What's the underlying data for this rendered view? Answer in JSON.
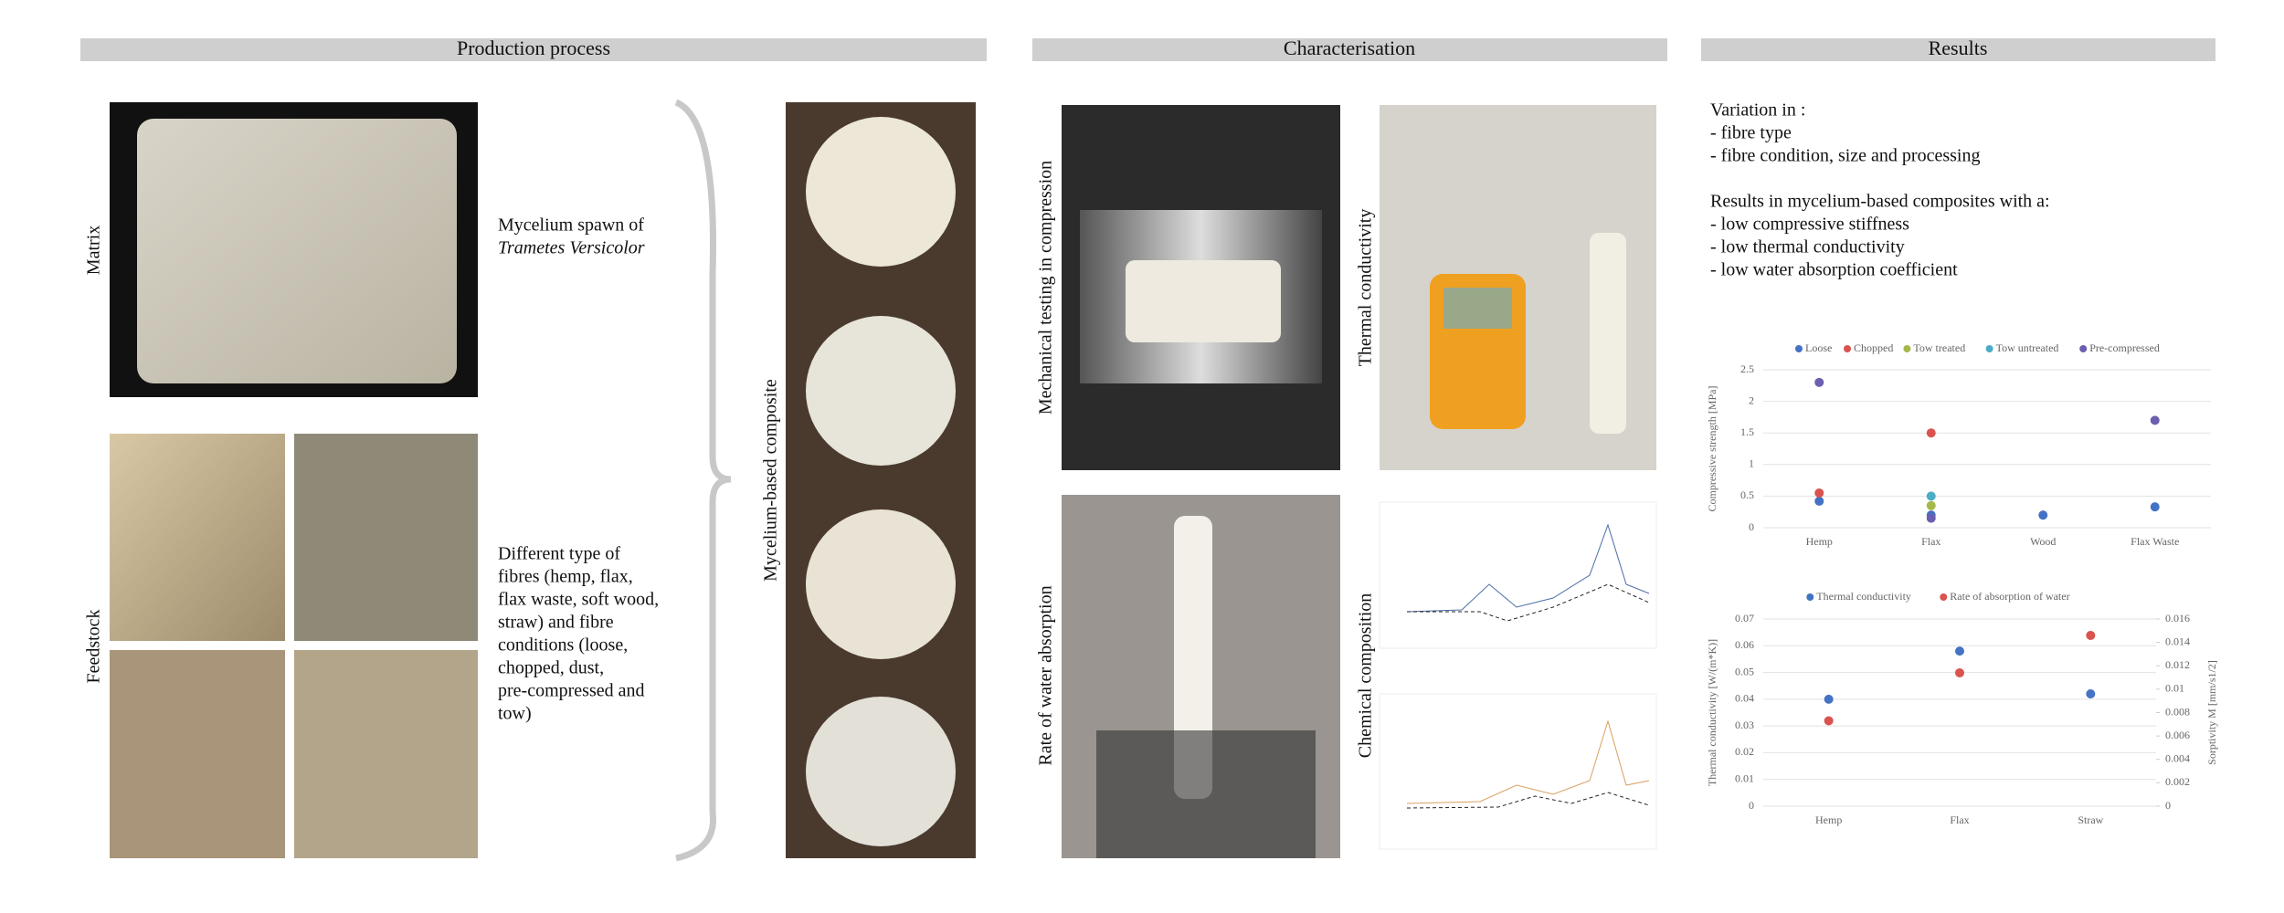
{
  "production": {
    "header": "Production process",
    "matrix_label": "Matrix",
    "matrix_text": [
      "Mycelium spawn of",
      "Trametes Versicolor"
    ],
    "feedstock_label": "Feedstock",
    "feedstock_text": [
      "Different type of",
      "fibres (hemp, flax,",
      "flax waste, soft wood,",
      "straw) and fibre",
      "conditions (loose,",
      "chopped, dust,",
      "pre-compressed and",
      "tow)"
    ],
    "composite_label": "Mycelium-based composite"
  },
  "characterisation": {
    "header": "Characterisation",
    "labels": [
      "Mechanical testing in compression",
      "Thermal conductivity",
      "Rate of water absorption",
      "Chemical composition"
    ]
  },
  "results": {
    "header": "Results",
    "variation": [
      "Variation in :",
      "- fibre type",
      "- fibre condition, size and processing"
    ],
    "outcome": [
      "Results in mycelium-based composites with a:",
      "- low compressive stiffness",
      "- low thermal conductivity",
      "- low water absorption coefficient"
    ]
  },
  "chart_data": [
    {
      "type": "scatter",
      "y_label": "Compressive strength [MPa]",
      "categories": [
        "Hemp",
        "Flax",
        "Wood",
        "Flax Waste"
      ],
      "series": [
        {
          "name": "Loose",
          "color": "#4472c4",
          "values": [
            0.42,
            0.2,
            0.2,
            0.33
          ]
        },
        {
          "name": "Chopped",
          "color": "#d9534f",
          "values": [
            0.55,
            1.5,
            null,
            null
          ]
        },
        {
          "name": "Tow treated",
          "color": "#a5b84a",
          "values": [
            null,
            0.35,
            null,
            null
          ]
        },
        {
          "name": "Tow untreated",
          "color": "#4bacc6",
          "values": [
            null,
            0.5,
            null,
            null
          ]
        },
        {
          "name": "Pre-compressed",
          "color": "#6a5fb0",
          "values": [
            2.3,
            0.15,
            null,
            1.7
          ]
        }
      ],
      "ylim": [
        0,
        2.5
      ],
      "yticks": [
        0,
        0.5,
        1,
        1.5,
        2,
        2.5
      ],
      "grid": true,
      "legend": "top"
    },
    {
      "type": "scatter",
      "y_label": "Thermal conductivity [W/(m*K)]",
      "y2_label": "Sorptivity M [mm/s1/2]",
      "categories": [
        "Hemp",
        "Flax",
        "Straw"
      ],
      "series": [
        {
          "name": "Thermal conductivity",
          "color": "#4472c4",
          "values": [
            0.04,
            0.058,
            0.042
          ]
        },
        {
          "name": "Rate of absorption of water",
          "color": "#d9534f",
          "axis": "y2",
          "values": [
            0.0073,
            0.0114,
            0.0146
          ]
        }
      ],
      "ylim": [
        0,
        0.07
      ],
      "yticks": [
        0,
        0.01,
        0.02,
        0.03,
        0.04,
        0.05,
        0.06,
        0.07
      ],
      "y2lim": [
        0,
        0.016
      ],
      "y2ticks": [
        0,
        0.002,
        0.004,
        0.006,
        0.008,
        0.01,
        0.012,
        0.014,
        0.016
      ],
      "grid": true,
      "legend": "top"
    }
  ]
}
